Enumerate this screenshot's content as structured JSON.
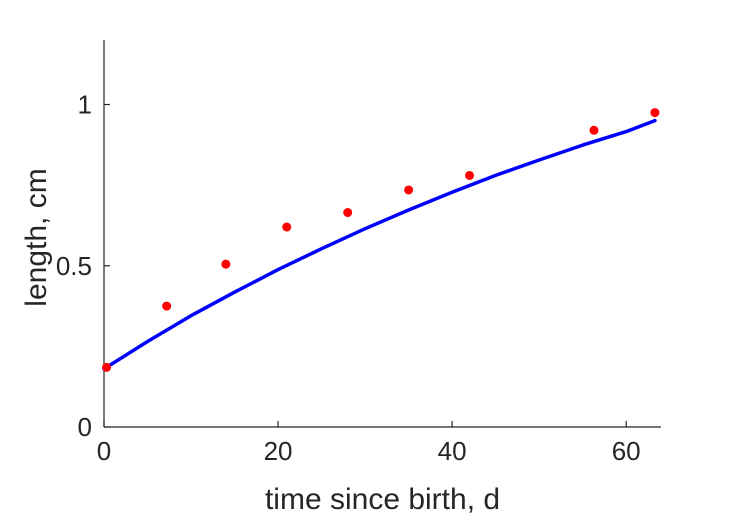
{
  "chart_data": {
    "type": "scatter",
    "xlabel": "time since birth, d",
    "ylabel": "length, cm",
    "xlim": [
      0,
      64
    ],
    "ylim": [
      0,
      1.2
    ],
    "xticks": [
      0,
      20,
      40,
      60
    ],
    "yticks": [
      0,
      0.5,
      1
    ],
    "ytick_labels": [
      "0",
      "0.5",
      "1"
    ],
    "grid": false,
    "series": [
      {
        "type": "scatter",
        "color": "#ff0000",
        "x": [
          0.3,
          7.2,
          14,
          21,
          28,
          35,
          42,
          56.3,
          63.3
        ],
        "y": [
          0.185,
          0.375,
          0.505,
          0.62,
          0.665,
          0.735,
          0.78,
          0.92,
          0.975
        ]
      },
      {
        "type": "line",
        "color": "#0000ff",
        "x": [
          0,
          5,
          10,
          15,
          20,
          25,
          30,
          35,
          40,
          45,
          50,
          55,
          60,
          63.3
        ],
        "y": [
          0.18,
          0.265,
          0.345,
          0.418,
          0.488,
          0.553,
          0.615,
          0.673,
          0.728,
          0.78,
          0.828,
          0.874,
          0.916,
          0.95
        ]
      }
    ]
  }
}
